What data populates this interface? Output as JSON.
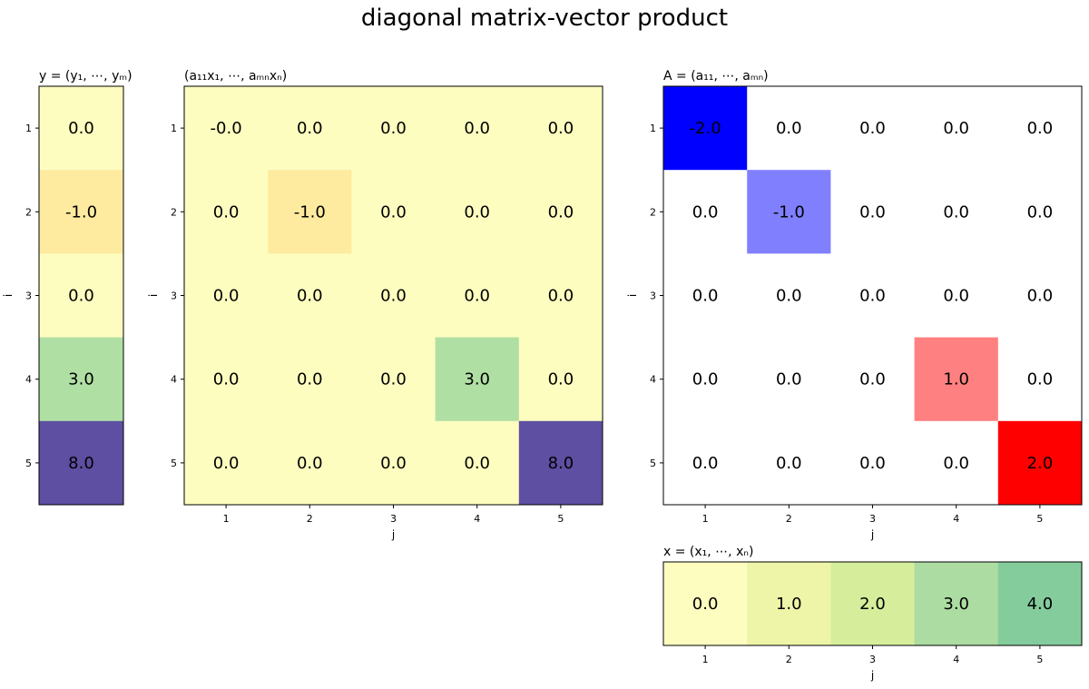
{
  "chart_data": {
    "type": "heatmap",
    "title": "diagonal matrix-vector product",
    "panels": [
      {
        "id": "y",
        "title": "y = (y₁, ⋯, yₘ)",
        "ylabel": "i",
        "xlabel": "",
        "row_ticks": [
          "1",
          "2",
          "3",
          "4",
          "5"
        ],
        "col_ticks": [],
        "colormap": "YlGnBu",
        "vmin": -1,
        "vmax": 8,
        "values": [
          [
            "0.0"
          ],
          [
            "-1.0"
          ],
          [
            "0.0"
          ],
          [
            "3.0"
          ],
          [
            "8.0"
          ]
        ],
        "colors": [
          [
            "#fdfdc0"
          ],
          [
            "#feeba0"
          ],
          [
            "#fdfdc0"
          ],
          [
            "#b0dfa4"
          ],
          [
            "#5e4fa2"
          ]
        ]
      },
      {
        "id": "ax",
        "title": "(a₁₁x₁, ⋯, aₘₙxₙ)",
        "ylabel": "i",
        "xlabel": "j",
        "row_ticks": [
          "1",
          "2",
          "3",
          "4",
          "5"
        ],
        "col_ticks": [
          "1",
          "2",
          "3",
          "4",
          "5"
        ],
        "colormap": "YlGnBu",
        "values": [
          [
            "-0.0",
            "0.0",
            "0.0",
            "0.0",
            "0.0"
          ],
          [
            "0.0",
            "-1.0",
            "0.0",
            "0.0",
            "0.0"
          ],
          [
            "0.0",
            "0.0",
            "0.0",
            "0.0",
            "0.0"
          ],
          [
            "0.0",
            "0.0",
            "0.0",
            "3.0",
            "0.0"
          ],
          [
            "0.0",
            "0.0",
            "0.0",
            "0.0",
            "8.0"
          ]
        ],
        "colors": [
          [
            "#fdfdc0",
            "#fdfdc0",
            "#fdfdc0",
            "#fdfdc0",
            "#fdfdc0"
          ],
          [
            "#fdfdc0",
            "#feeba0",
            "#fdfdc0",
            "#fdfdc0",
            "#fdfdc0"
          ],
          [
            "#fdfdc0",
            "#fdfdc0",
            "#fdfdc0",
            "#fdfdc0",
            "#fdfdc0"
          ],
          [
            "#fdfdc0",
            "#fdfdc0",
            "#fdfdc0",
            "#b0dfa4",
            "#fdfdc0"
          ],
          [
            "#fdfdc0",
            "#fdfdc0",
            "#fdfdc0",
            "#fdfdc0",
            "#5e4fa2"
          ]
        ]
      },
      {
        "id": "A",
        "title": "A = (a₁₁, ⋯, aₘₙ)",
        "ylabel": "i",
        "xlabel": "j",
        "row_ticks": [
          "1",
          "2",
          "3",
          "4",
          "5"
        ],
        "col_ticks": [
          "1",
          "2",
          "3",
          "4",
          "5"
        ],
        "colormap": "bwr",
        "values": [
          [
            "-2.0",
            "0.0",
            "0.0",
            "0.0",
            "0.0"
          ],
          [
            "0.0",
            "-1.0",
            "0.0",
            "0.0",
            "0.0"
          ],
          [
            "0.0",
            "0.0",
            "0.0",
            "0.0",
            "0.0"
          ],
          [
            "0.0",
            "0.0",
            "0.0",
            "1.0",
            "0.0"
          ],
          [
            "0.0",
            "0.0",
            "0.0",
            "0.0",
            "2.0"
          ]
        ],
        "colors": [
          [
            "#0000ff",
            "#ffffff",
            "#ffffff",
            "#ffffff",
            "#ffffff"
          ],
          [
            "#ffffff",
            "#8080ff",
            "#ffffff",
            "#ffffff",
            "#ffffff"
          ],
          [
            "#ffffff",
            "#ffffff",
            "#ffffff",
            "#ffffff",
            "#ffffff"
          ],
          [
            "#ffffff",
            "#ffffff",
            "#ffffff",
            "#ff8080",
            "#ffffff"
          ],
          [
            "#ffffff",
            "#ffffff",
            "#ffffff",
            "#ffffff",
            "#ff0000"
          ]
        ]
      },
      {
        "id": "x",
        "title": "x = (x₁, ⋯, xₙ)",
        "ylabel": "",
        "xlabel": "j",
        "row_ticks": [],
        "col_ticks": [
          "1",
          "2",
          "3",
          "4",
          "5"
        ],
        "colormap": "YlGn",
        "values": [
          [
            "0.0",
            "1.0",
            "2.0",
            "3.0",
            "4.0"
          ]
        ],
        "colors": [
          [
            "#fdfdc0",
            "#eef5a8",
            "#d6ee9b",
            "#acdca2",
            "#84cc9c"
          ]
        ]
      }
    ]
  }
}
